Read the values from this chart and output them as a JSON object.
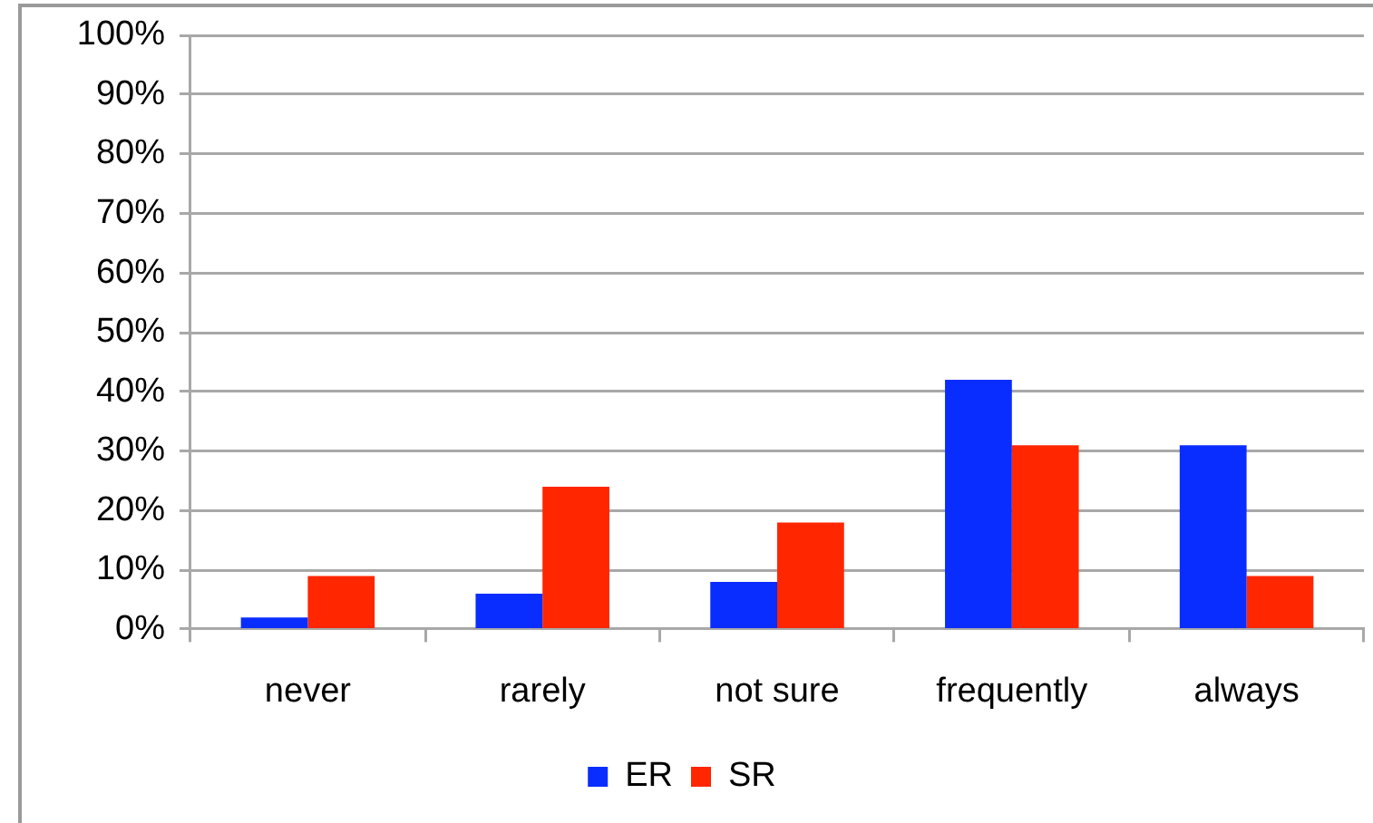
{
  "chart_data": {
    "type": "bar",
    "categories": [
      "never",
      "rarely",
      "not sure",
      "frequently",
      "always"
    ],
    "series": [
      {
        "name": "ER",
        "color": "#0a2dff",
        "values": [
          2,
          6,
          8,
          42,
          31
        ]
      },
      {
        "name": "SR",
        "color": "#ff2600",
        "values": [
          9,
          24,
          18,
          31,
          9
        ]
      }
    ],
    "ylim": [
      0,
      100
    ],
    "yticks": [
      {
        "value": 0,
        "label": "0%"
      },
      {
        "value": 10,
        "label": "10%"
      },
      {
        "value": 20,
        "label": "20%"
      },
      {
        "value": 30,
        "label": "30%"
      },
      {
        "value": 40,
        "label": "40%"
      },
      {
        "value": 50,
        "label": "50%"
      },
      {
        "value": 60,
        "label": "60%"
      },
      {
        "value": 70,
        "label": "70%"
      },
      {
        "value": 80,
        "label": "80%"
      },
      {
        "value": 90,
        "label": "90%"
      },
      {
        "value": 100,
        "label": "100%"
      }
    ],
    "grid": "y",
    "legend": "bottom"
  }
}
